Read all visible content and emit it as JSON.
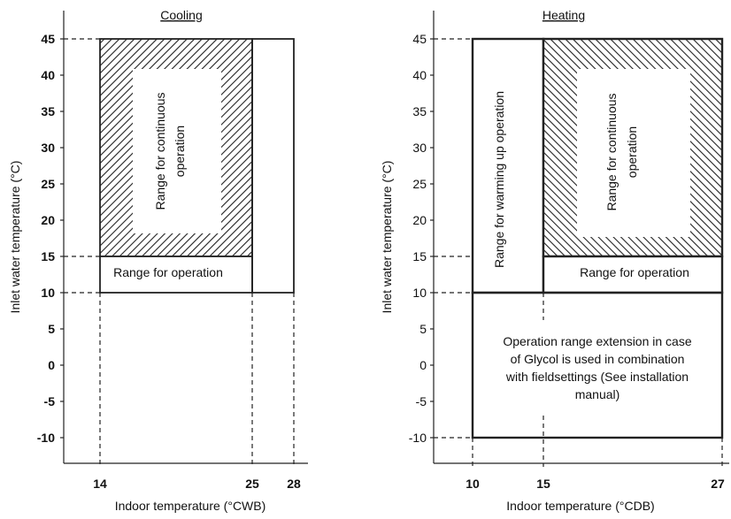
{
  "left": {
    "title": "Cooling",
    "y_axis_label": "Inlet water temperature (°C)",
    "x_axis_label": "Indoor temperature (°CWB)",
    "y_ticks": [
      "45",
      "40",
      "35",
      "30",
      "25",
      "20",
      "15",
      "10",
      "5",
      "0",
      "-5",
      "-10"
    ],
    "x_ticks": [
      "14",
      "25",
      "28"
    ],
    "continuous_label_1": "Range for continuous",
    "continuous_label_2": "operation",
    "operation_label": "Range for operation"
  },
  "right": {
    "title": "Heating",
    "y_axis_label": "Inlet water temperature (°C)",
    "x_axis_label": "Indoor temperature (°CDB)",
    "y_ticks": [
      "45",
      "40",
      "35",
      "30",
      "25",
      "20",
      "15",
      "10",
      "5",
      "0",
      "-5",
      "-10"
    ],
    "x_ticks": [
      "10",
      "15",
      "27"
    ],
    "warming_label": "Range for warming up operation",
    "continuous_label_1": "Range for continuous",
    "continuous_label_2": "operation",
    "operation_label": "Range for operation",
    "extension_lines": [
      "Operation range extension in case",
      "of Glycol is used in combination",
      "with fieldsettings (See installation",
      "manual)"
    ]
  }
}
